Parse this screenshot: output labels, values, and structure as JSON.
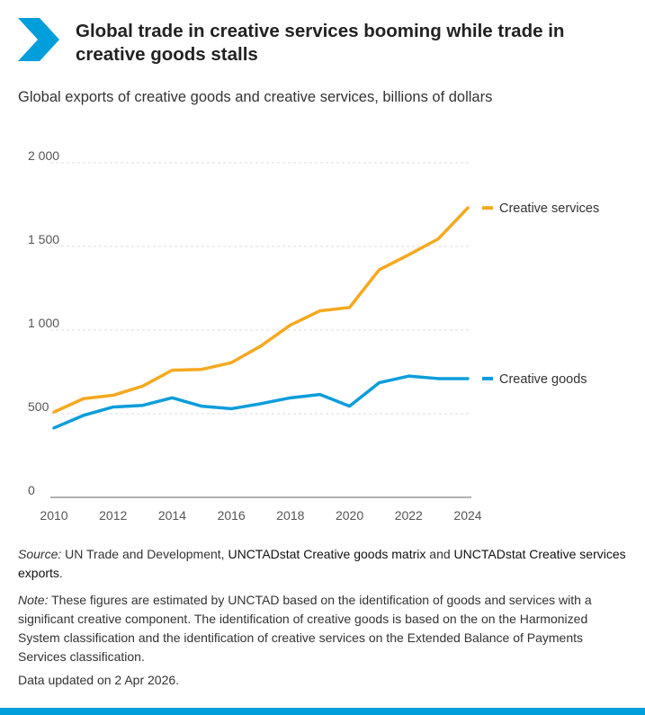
{
  "header": {
    "title": "Global trade in creative services booming while trade in creative goods stalls",
    "subtitle": "Global exports of creative goods and creative services, billions of dollars"
  },
  "colors": {
    "accent": "#009edb",
    "creative_services": "#f5a91f",
    "creative_goods": "#0b9ddb"
  },
  "chart_data": {
    "type": "line",
    "x": [
      2010,
      2011,
      2012,
      2013,
      2014,
      2015,
      2016,
      2017,
      2018,
      2019,
      2020,
      2021,
      2022,
      2023,
      2024
    ],
    "x_ticks": [
      "2010",
      "2012",
      "2014",
      "2016",
      "2018",
      "2020",
      "2022",
      "2024"
    ],
    "y_ticks": [
      "0",
      "500",
      "1 000",
      "1 500",
      "2 000"
    ],
    "ylim": [
      0,
      2000
    ],
    "xlim": [
      2010,
      2024
    ],
    "grid": true,
    "legend": "right, at line ends",
    "series": [
      {
        "name": "Creative services",
        "color": "#f5a91f",
        "values": [
          510,
          590,
          610,
          665,
          760,
          765,
          805,
          905,
          1030,
          1115,
          1135,
          1360,
          1450,
          1545,
          1730
        ]
      },
      {
        "name": "Creative goods",
        "color": "#0b9ddb",
        "values": [
          415,
          490,
          540,
          550,
          595,
          545,
          530,
          560,
          595,
          615,
          545,
          685,
          725,
          710,
          710
        ]
      }
    ]
  },
  "footer": {
    "source_label": "Source:",
    "source_text": "UN Trade and Development,",
    "source_link1": "UNCTADstat Creative goods matrix",
    "source_and": "and",
    "source_link2": "UNCTADstat Creative services exports",
    "source_end": ".",
    "note_label": "Note:",
    "note_text": "These figures are estimated by UNCTAD based on the identification of goods and services with a significant creative component. The identification of creative goods is based on the on the Harmonized System classification and the identification of  creative services on the Extended Balance of Payments Services classification.",
    "updated": "Data updated on 2 Apr 2026."
  }
}
